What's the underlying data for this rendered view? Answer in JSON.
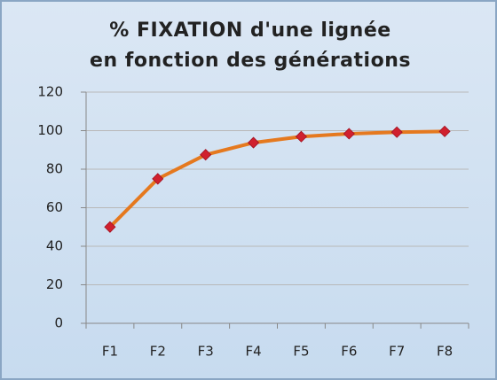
{
  "chart_data": {
    "type": "line",
    "title": [
      "% FIXATION d'une lignée",
      "en fonction des générations"
    ],
    "categories": [
      "F1",
      "F2",
      "F3",
      "F4",
      "F5",
      "F6",
      "F7",
      "F8"
    ],
    "series": [
      {
        "color": "#e5791f",
        "marker_color": "#d0202e",
        "values": [
          50,
          75,
          87.5,
          93.75,
          96.9,
          98.4,
          99.2,
          99.6
        ]
      }
    ],
    "ylim": [
      0,
      120
    ],
    "yticks": [
      0,
      20,
      40,
      60,
      80,
      100,
      120
    ],
    "grid": true
  }
}
